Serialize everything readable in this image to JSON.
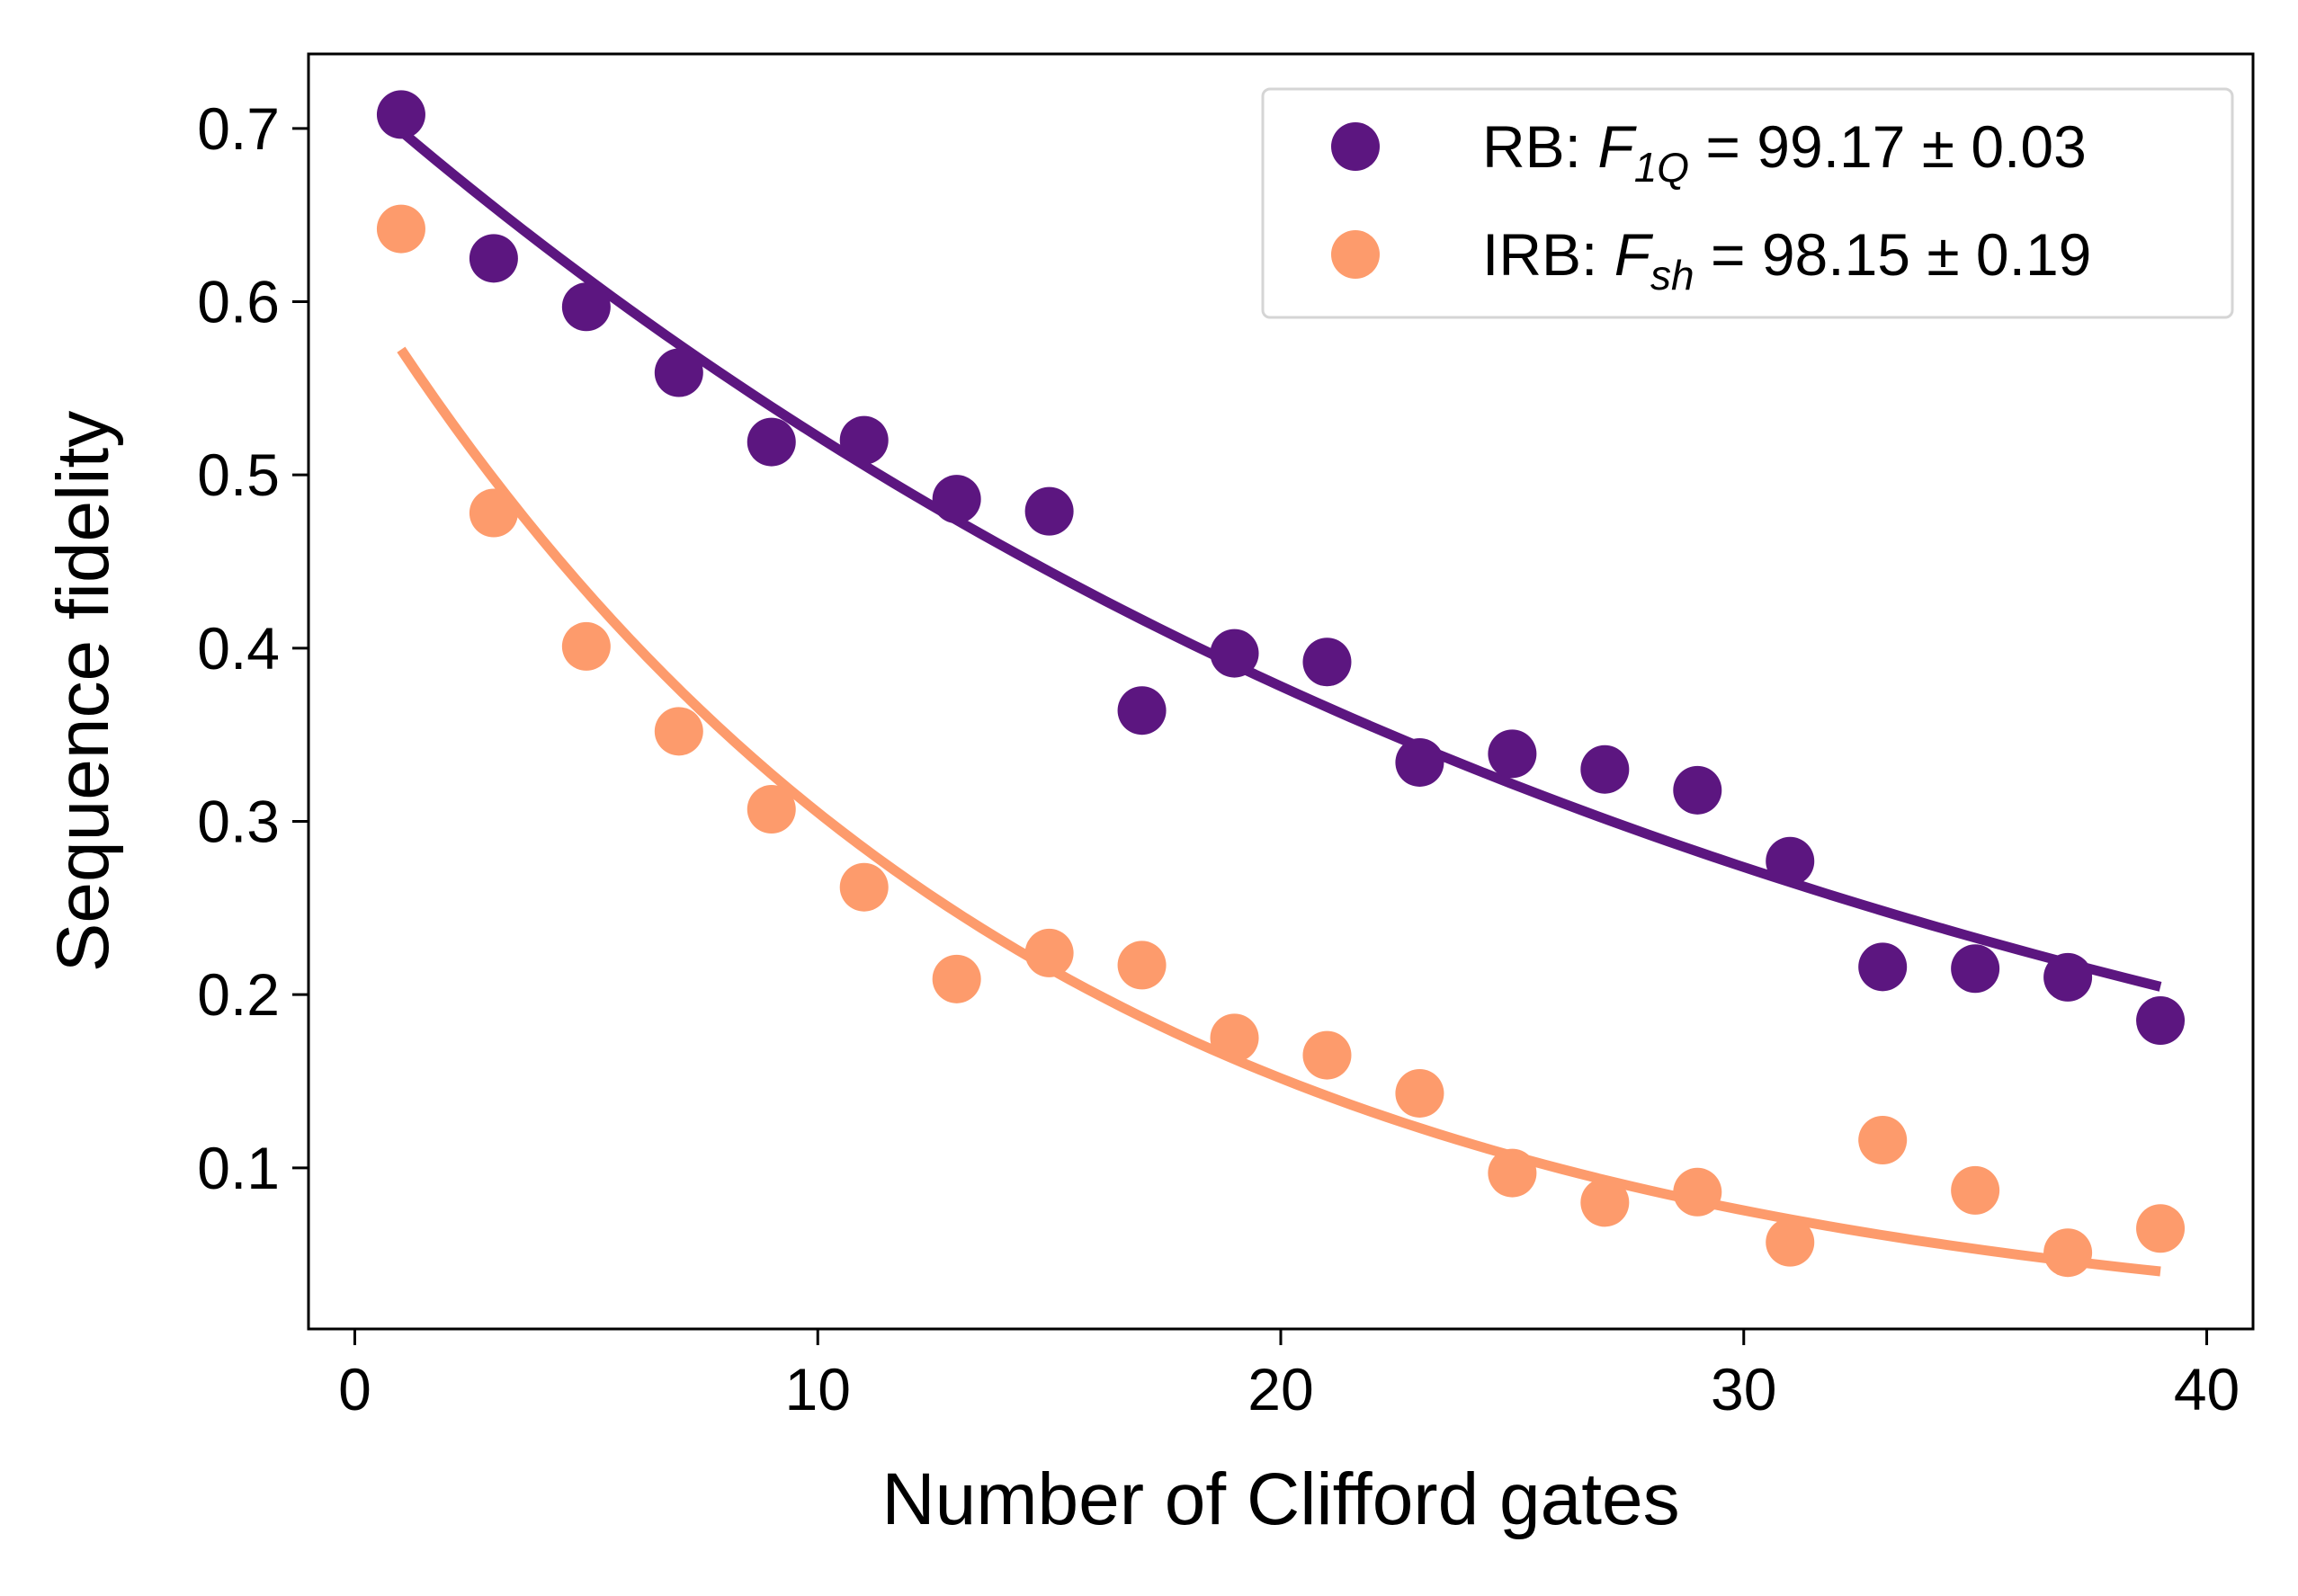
{
  "chart_data": {
    "type": "scatter",
    "title": "",
    "xlabel": "Number of Clifford gates",
    "ylabel": "Sequence fidelity",
    "xlim": [
      -1,
      41
    ],
    "ylim": [
      0.007,
      0.743
    ],
    "xticks": [
      0,
      10,
      20,
      30,
      40
    ],
    "xtick_labels": [
      "0",
      "10",
      "20",
      "30",
      "40"
    ],
    "yticks": [
      0.1,
      0.2,
      0.3,
      0.4,
      0.5,
      0.6,
      0.7
    ],
    "ytick_labels": [
      "0.1",
      "0.2",
      "0.3",
      "0.4",
      "0.5",
      "0.6",
      "0.7"
    ],
    "grid": false,
    "legend_position": "top-right",
    "series": [
      {
        "name": "RB",
        "legend": {
          "prefix": "RB: ",
          "symbol": "F",
          "subscript": "1Q",
          "suffix": " = 99.17 ± 0.03"
        },
        "color": "#5c1680",
        "x": [
          1,
          3,
          5,
          7,
          9,
          11,
          13,
          15,
          17,
          19,
          21,
          23,
          25,
          27,
          29,
          31,
          33,
          35,
          37,
          39
        ],
        "y": [
          0.708,
          0.625,
          0.597,
          0.559,
          0.519,
          0.52,
          0.486,
          0.479,
          0.364,
          0.397,
          0.392,
          0.334,
          0.339,
          0.33,
          0.318,
          0.277,
          0.216,
          0.215,
          0.21,
          0.185
        ],
        "fit": {
          "x": [
            1,
            39
          ],
          "amplitude": 0.7214,
          "decay": 0.9682
        }
      },
      {
        "name": "IRB",
        "legend": {
          "prefix": "IRB: ",
          "symbol": "F",
          "subscript": "sh",
          "suffix": " = 98.15 ± 0.19"
        },
        "color": "#fd9b6c",
        "x": [
          1,
          3,
          5,
          7,
          9,
          11,
          13,
          15,
          17,
          19,
          21,
          23,
          25,
          27,
          29,
          31,
          33,
          35,
          37,
          39
        ],
        "y": [
          0.642,
          0.478,
          0.401,
          0.352,
          0.307,
          0.262,
          0.209,
          0.224,
          0.217,
          0.175,
          0.165,
          0.143,
          0.097,
          0.08,
          0.086,
          0.057,
          0.116,
          0.087,
          0.051,
          0.065
        ],
        "fit": {
          "x": [
            1,
            39
          ],
          "amplitude": 0.6138,
          "decay": 0.9325
        }
      }
    ]
  }
}
